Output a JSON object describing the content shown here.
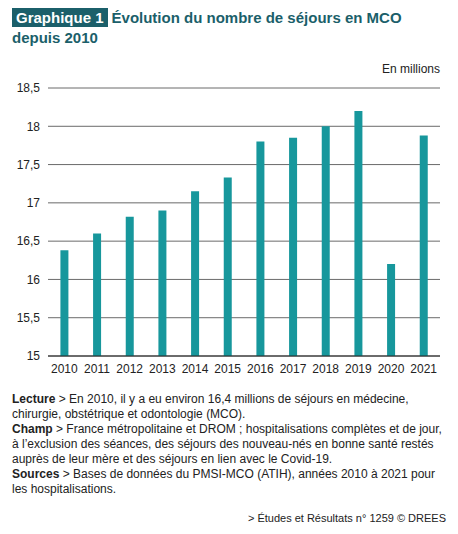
{
  "chart_data": {
    "type": "bar",
    "figure_label": "Graphique 1",
    "title": "Évolution du nombre de séjours en MCO depuis 2010",
    "y_label": "En millions",
    "categories": [
      "2010",
      "2011",
      "2012",
      "2013",
      "2014",
      "2015",
      "2016",
      "2017",
      "2018",
      "2019",
      "2020",
      "2021"
    ],
    "values": [
      16.38,
      16.6,
      16.82,
      16.9,
      17.15,
      17.33,
      17.8,
      17.85,
      18.0,
      18.2,
      16.2,
      17.88
    ],
    "color": "#17979c",
    "ylim": [
      15,
      18.5
    ],
    "yticks": [
      15,
      {
        "value": 15.5,
        "label": "15,5"
      },
      16,
      {
        "value": 16.5,
        "label": "16,5"
      },
      17,
      {
        "value": 17.5,
        "label": "17,5"
      },
      18,
      {
        "value": 18.5,
        "label": "18,5"
      }
    ],
    "grid": true,
    "notes": [
      {
        "label": "Lecture",
        "text": "> En 2010, il y a eu environ 16,4 millions de séjours en médecine, chirurgie, obstétrique et odontologie (MCO)."
      },
      {
        "label": "Champ",
        "text": "> France métropolitaine et DROM ; hospitalisations complètes et de jour, à l’exclusion des séances, des séjours des nouveau-nés en bonne santé restés auprès de leur mère et des séjours en lien avec le Covid-19."
      },
      {
        "label": "Sources",
        "text": "> Bases de données du PMSI-MCO (ATIH), années 2010 à 2021 pour les hospitalisations."
      }
    ],
    "credit": "> Études et Résultats n° 1259 © DREES"
  }
}
